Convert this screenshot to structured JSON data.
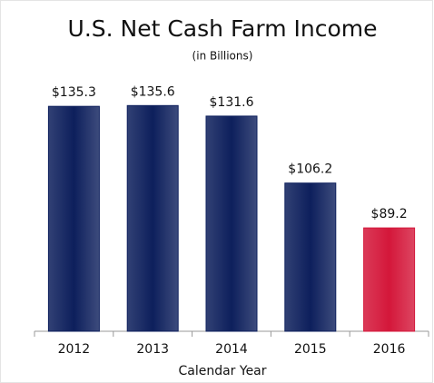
{
  "chart_data": {
    "type": "bar",
    "title": "U.S. Net Cash Farm Income",
    "subtitle": "(in Billions)",
    "x_label": "Calendar Year",
    "categories": [
      "2012",
      "2013",
      "2014",
      "2015",
      "2016"
    ],
    "values": [
      135.3,
      135.6,
      131.6,
      106.2,
      89.2
    ],
    "value_labels": [
      "$135.3",
      "$135.6",
      "$131.6",
      "$106.2",
      "$89.2"
    ],
    "colors": [
      "#0d1f5c",
      "#0d1f5c",
      "#0d1f5c",
      "#0d1f5c",
      "#d4173a"
    ],
    "ylim": [
      50,
      145
    ]
  }
}
